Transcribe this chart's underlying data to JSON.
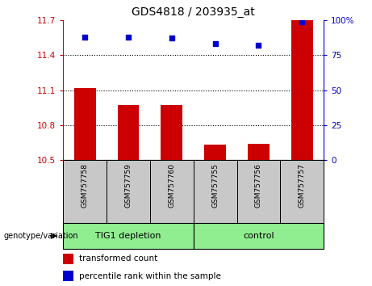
{
  "title": "GDS4818 / 203935_at",
  "samples": [
    "GSM757758",
    "GSM757759",
    "GSM757760",
    "GSM757755",
    "GSM757756",
    "GSM757757"
  ],
  "bar_values": [
    11.12,
    10.97,
    10.97,
    10.63,
    10.64,
    11.7
  ],
  "scatter_values": [
    88,
    88,
    87,
    83,
    82,
    99
  ],
  "bar_color": "#cc0000",
  "scatter_color": "#0000cc",
  "ylim_left": [
    10.5,
    11.7
  ],
  "ylim_right": [
    0,
    100
  ],
  "yticks_left": [
    10.5,
    10.8,
    11.1,
    11.4,
    11.7
  ],
  "yticks_right": [
    0,
    25,
    50,
    75,
    100
  ],
  "ytick_labels_left": [
    "10.5",
    "10.8",
    "11.1",
    "11.4",
    "11.7"
  ],
  "ytick_labels_right": [
    "0",
    "25",
    "50",
    "75",
    "100%"
  ],
  "legend_bar_label": "transformed count",
  "legend_scatter_label": "percentile rank within the sample",
  "genotype_label": "genotype/variation",
  "bar_width": 0.5,
  "bar_color_hex": "#cc0000",
  "scatter_color_hex": "#0000cc",
  "left_tick_color": "#cc0000",
  "right_tick_color": "#0000cc",
  "group1_label": "TIG1 depletion",
  "group2_label": "control",
  "xlabel_bg": "#c8c8c8",
  "group_bg": "#90ee90",
  "dotline_color": "#000000"
}
